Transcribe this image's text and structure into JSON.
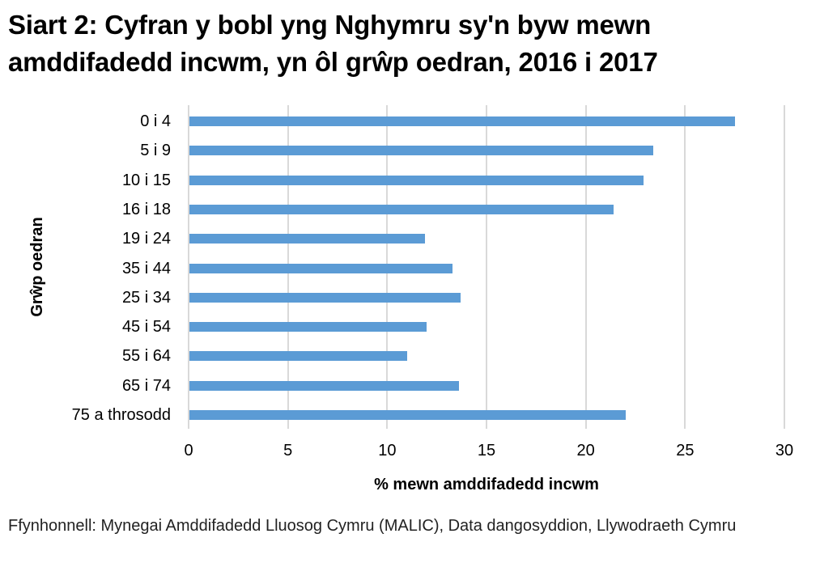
{
  "title": "Siart 2: Cyfran y bobl yng Nghymru sy'n byw mewn amddifadedd incwm, yn ôl grŵp oedran, 2016 i 2017",
  "source": "Ffynhonnell: Mynegai Amddifadedd Lluosog Cymru (MALIC), Data dangosyddion, Llywodraeth Cymru",
  "colors": {
    "bar": "#5b9bd5",
    "grid": "#d9d9d9",
    "text": "#000000"
  },
  "chart_data": {
    "type": "bar",
    "orientation": "horizontal",
    "title": "Siart 2: Cyfran y bobl yng Nghymru sy'n byw mewn amddifadedd incwm, yn ôl grŵp oedran, 2016 i 2017",
    "xlabel": "% mewn amddifadedd incwm",
    "ylabel": "Grŵp oedran",
    "xlim": [
      0,
      30
    ],
    "xticks": [
      "0",
      "5",
      "10",
      "15",
      "20",
      "25",
      "30"
    ],
    "grid": true,
    "legend": null,
    "categories": [
      "0 i 4",
      "5 i 9",
      "10 i 15",
      "16 i 18",
      "19 i 24",
      "35 i 44",
      "25 i 34",
      "45 i 54",
      "55 i 64",
      "65 i 74",
      "75 a throsodd"
    ],
    "values": [
      27.5,
      23.4,
      22.9,
      21.4,
      11.9,
      13.3,
      13.7,
      12.0,
      11.0,
      13.6,
      22.0
    ]
  }
}
